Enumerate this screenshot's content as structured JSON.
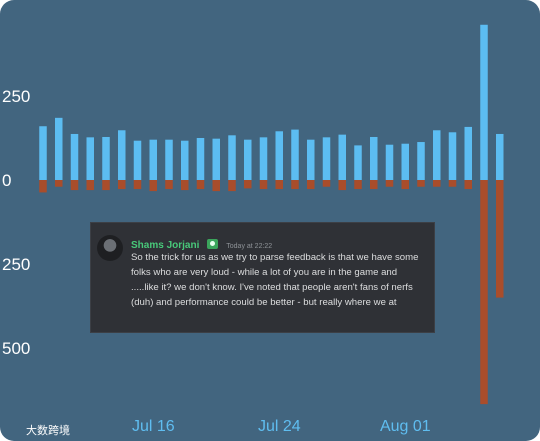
{
  "chart_data": {
    "type": "bar",
    "x_tick_labels": [
      "Jul 16",
      "Jul 24",
      "Aug 01"
    ],
    "y_tick_labels": [
      "250",
      "0",
      "250",
      "500"
    ],
    "y_ticks": [
      250,
      0,
      -250,
      -500
    ],
    "ylim": [
      -670,
      520
    ],
    "grid": false,
    "series": [
      {
        "color": "#5cbdf2",
        "values": [
          160,
          185,
          137,
          127,
          128,
          148,
          117,
          120,
          120,
          117,
          125,
          123,
          133,
          120,
          127,
          145,
          150,
          120,
          127,
          135,
          103,
          128,
          105,
          108,
          113,
          148,
          142,
          158,
          462,
          137
        ]
      },
      {
        "color": "#a94d2b",
        "values": [
          -37,
          -20,
          -30,
          -30,
          -30,
          -27,
          -27,
          -33,
          -27,
          -30,
          -27,
          -33,
          -33,
          -25,
          -27,
          -27,
          -27,
          -27,
          -20,
          -30,
          -27,
          -27,
          -20,
          -27,
          -20,
          -20,
          -20,
          -27,
          -667,
          -350
        ]
      }
    ]
  },
  "message": {
    "author": "Shams Jorjani",
    "timestamp": "Today at 22:22",
    "text": "So the trick for us as we try to parse feedback is that we have some folks who are very loud - while a lot of you are in the game and .....like it? we don't know. I've noted that people aren't fans of nerfs (duh) and performance could be better - but really where we at"
  },
  "watermark": "大数跨境"
}
